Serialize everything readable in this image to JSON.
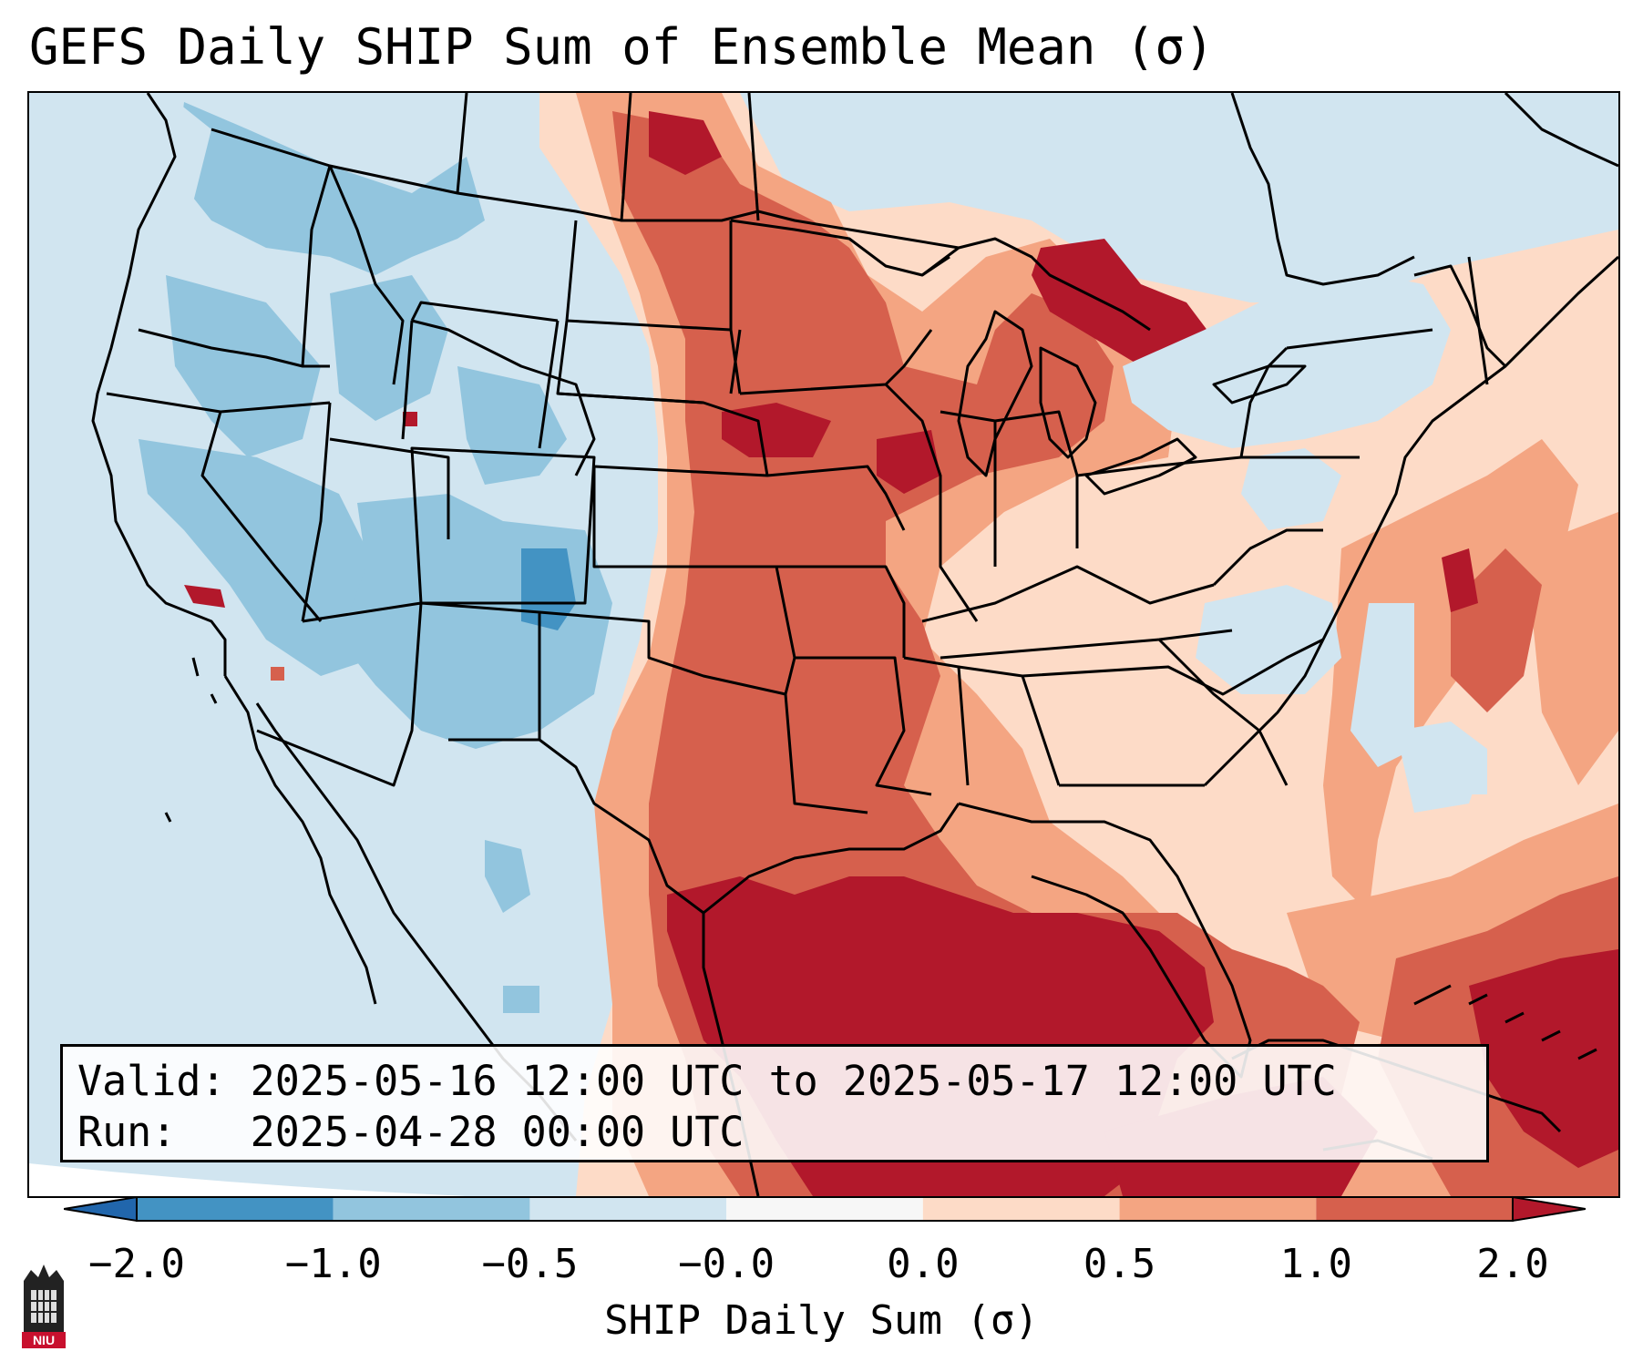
{
  "title": "GEFS Daily SHIP Sum of Ensemble Mean (σ)",
  "info_box": {
    "valid_label": "Valid:",
    "valid_value": "2025-05-16 12:00 UTC to 2025-05-17 12:00 UTC",
    "run_label": "Run:",
    "run_value": "2025-04-28 00:00 UTC"
  },
  "colorbar": {
    "label": "SHIP Daily Sum (σ)",
    "ticks": [
      "−2.0",
      "−1.0",
      "−0.5",
      "−0.0",
      "0.0",
      "0.5",
      "1.0",
      "2.0"
    ],
    "bins": [
      {
        "range": [
          -2.0,
          -1.0
        ],
        "color": "#4393c3"
      },
      {
        "range": [
          -1.0,
          -0.5
        ],
        "color": "#92c5de"
      },
      {
        "range": [
          -0.5,
          -0.0
        ],
        "color": "#d1e5f0"
      },
      {
        "range": [
          -0.0,
          0.0
        ],
        "color": "#f7f7f7"
      },
      {
        "range": [
          0.0,
          0.5
        ],
        "color": "#fddbc7"
      },
      {
        "range": [
          0.5,
          1.0
        ],
        "color": "#f4a582"
      },
      {
        "range": [
          1.0,
          2.0
        ],
        "color": "#d6604d"
      }
    ],
    "under_color": "#2166ac",
    "over_color": "#b2182b"
  },
  "map": {
    "projection": "Lambert Conformal",
    "region": "Contiguous United States",
    "field_colors": {
      "ocean_neutral": "#d1e5f0",
      "neg_mid": "#92c5de",
      "neg_strong": "#4393c3",
      "pos_light": "#fddbc7",
      "pos_mid": "#f4a582",
      "pos_strong": "#d6604d",
      "pos_extreme": "#b2182b"
    }
  },
  "logo": {
    "text": "NIU"
  }
}
